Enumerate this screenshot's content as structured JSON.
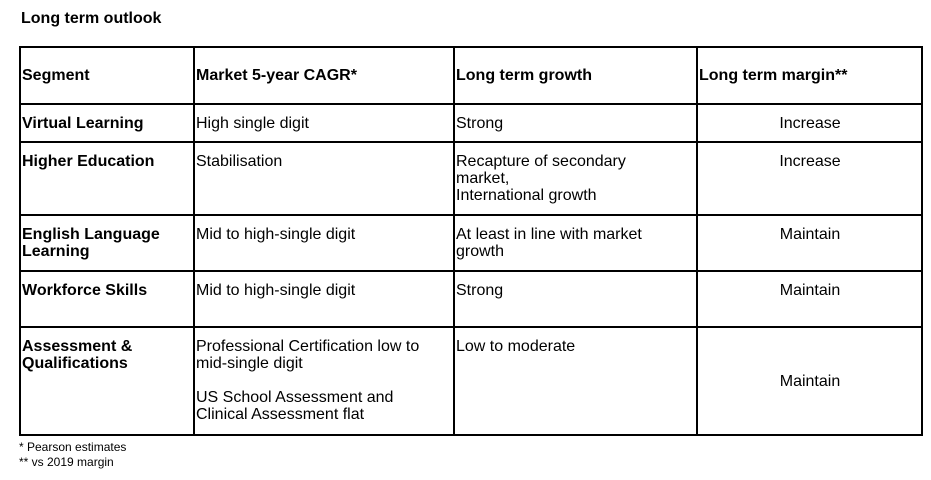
{
  "title": "Long term outlook",
  "table": {
    "headers": [
      "Segment",
      "Market 5-year CAGR*",
      "Long term growth",
      "Long term margin**"
    ],
    "rows": [
      {
        "segment": "Virtual Learning",
        "cagr": [
          "High single digit"
        ],
        "growth": [
          "Strong"
        ],
        "margin": "Increase"
      },
      {
        "segment": "Higher Education",
        "cagr": [
          "Stabilisation"
        ],
        "growth": [
          "Recapture of secondary",
          "market,",
          "International growth"
        ],
        "margin": "Increase"
      },
      {
        "segment": [
          "English Language",
          "Learning"
        ],
        "cagr": [
          "Mid to high-single digit"
        ],
        "growth": [
          "At least in line with market",
          "growth"
        ],
        "margin": "Maintain"
      },
      {
        "segment": "Workforce Skills",
        "cagr": [
          "Mid to high-single digit"
        ],
        "growth": [
          "Strong"
        ],
        "margin": "Maintain"
      },
      {
        "segment": [
          "Assessment &",
          "Qualifications"
        ],
        "cagr": [
          "Professional Certification low to",
          "mid-single digit",
          "",
          "US School Assessment and",
          "Clinical Assessment flat"
        ],
        "growth": [
          "Low to moderate"
        ],
        "margin": "Maintain"
      }
    ]
  },
  "footnotes": [
    "* Pearson estimates",
    "** vs 2019 margin"
  ]
}
